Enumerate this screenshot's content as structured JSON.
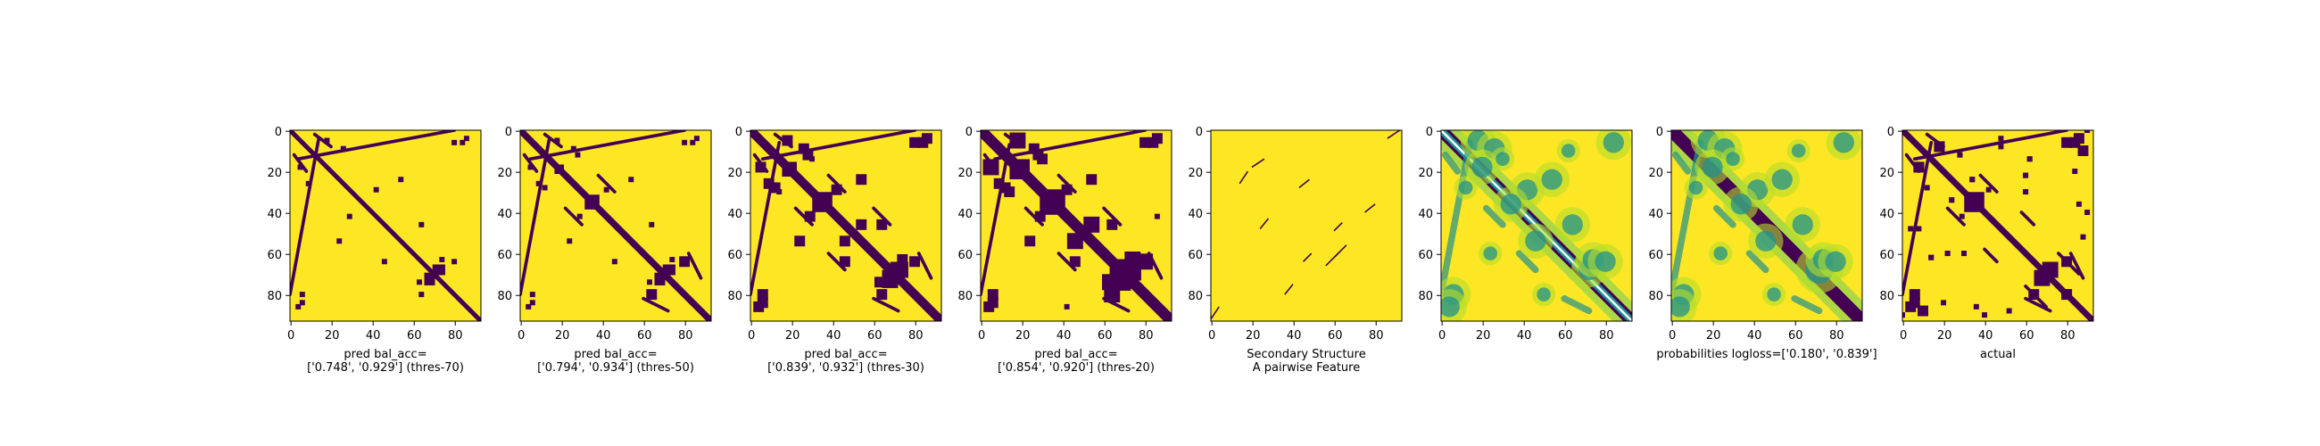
{
  "colors": {
    "background": "#fde725",
    "contact": "#440154",
    "mid_teal": "#21918c",
    "mid_green": "#5ec962",
    "light_green": "#b5de2b",
    "axes": "#000000"
  },
  "chart_data": [
    {
      "type": "heatmap",
      "colormap": "viridis",
      "grid": false,
      "matrix_size": 93,
      "xlim": [
        0,
        93
      ],
      "ylim": [
        93,
        0
      ],
      "xticks": [
        "0",
        "20",
        "40",
        "60",
        "80"
      ],
      "yticks": [
        "0",
        "20",
        "40",
        "60",
        "80"
      ],
      "xlabel": [
        "pred bal_acc=",
        "['0.748', '0.929'] (thres-70)"
      ],
      "diag_width": 1.1,
      "blobs": [
        [
          18,
          5,
          1
        ],
        [
          26,
          9,
          1
        ],
        [
          42,
          29,
          1
        ],
        [
          54,
          24,
          1
        ],
        [
          64,
          46,
          1
        ],
        [
          72,
          68,
          2
        ],
        [
          68,
          73,
          2
        ],
        [
          74,
          63,
          1
        ],
        [
          80,
          64,
          1
        ],
        [
          84,
          6,
          1
        ],
        [
          6,
          80,
          1
        ],
        [
          4,
          86,
          1
        ]
      ],
      "offdiag": [
        [
          0,
          80,
          14,
          4
        ],
        [
          2,
          12,
          8,
          20
        ]
      ]
    },
    {
      "type": "heatmap",
      "colormap": "viridis",
      "grid": false,
      "matrix_size": 93,
      "xlim": [
        0,
        93
      ],
      "ylim": [
        93,
        0
      ],
      "xticks": [
        "0",
        "20",
        "40",
        "60",
        "80"
      ],
      "yticks": [
        "0",
        "20",
        "40",
        "60",
        "80"
      ],
      "xlabel": [
        "pred bal_acc=",
        "['0.794', '0.934'] (thres-50)"
      ],
      "diag_width": 1.6,
      "blobs": [
        [
          18,
          5,
          1
        ],
        [
          26,
          9,
          1
        ],
        [
          20,
          18,
          1
        ],
        [
          42,
          29,
          1
        ],
        [
          34,
          36,
          2
        ],
        [
          54,
          24,
          1
        ],
        [
          64,
          46,
          1
        ],
        [
          72,
          68,
          2
        ],
        [
          68,
          73,
          2
        ],
        [
          74,
          63,
          1
        ],
        [
          80,
          64,
          2
        ],
        [
          84,
          6,
          1
        ],
        [
          6,
          80,
          1
        ],
        [
          4,
          86,
          1
        ],
        [
          12,
          28,
          1
        ]
      ],
      "offdiag": [
        [
          0,
          80,
          14,
          5
        ],
        [
          2,
          12,
          8,
          20
        ],
        [
          60,
          82,
          72,
          88
        ],
        [
          22,
          38,
          30,
          46
        ]
      ]
    },
    {
      "type": "heatmap",
      "colormap": "viridis",
      "grid": false,
      "matrix_size": 93,
      "xlim": [
        0,
        93
      ],
      "ylim": [
        93,
        0
      ],
      "xticks": [
        "0",
        "20",
        "40",
        "60",
        "80"
      ],
      "yticks": [
        "0",
        "20",
        "40",
        "60",
        "80"
      ],
      "xlabel": [
        "pred bal_acc=",
        "['0.839', '0.932'] (thres-30)"
      ],
      "diag_width": 2.2,
      "blobs": [
        [
          18,
          5,
          2
        ],
        [
          26,
          9,
          2
        ],
        [
          20,
          18,
          2
        ],
        [
          42,
          29,
          2
        ],
        [
          34,
          36,
          3
        ],
        [
          54,
          24,
          2
        ],
        [
          64,
          46,
          2
        ],
        [
          72,
          68,
          3
        ],
        [
          68,
          73,
          3
        ],
        [
          74,
          63,
          2
        ],
        [
          80,
          64,
          2
        ],
        [
          84,
          6,
          2
        ],
        [
          6,
          80,
          2
        ],
        [
          4,
          86,
          2
        ],
        [
          12,
          28,
          2
        ],
        [
          46,
          54,
          2
        ],
        [
          30,
          14,
          1
        ]
      ],
      "offdiag": [
        [
          0,
          80,
          14,
          6
        ],
        [
          2,
          12,
          8,
          20
        ],
        [
          60,
          82,
          72,
          88
        ],
        [
          22,
          38,
          30,
          46
        ],
        [
          38,
          60,
          46,
          68
        ]
      ]
    },
    {
      "type": "heatmap",
      "colormap": "viridis",
      "grid": false,
      "matrix_size": 93,
      "xlim": [
        0,
        93
      ],
      "ylim": [
        93,
        0
      ],
      "xticks": [
        "0",
        "20",
        "40",
        "60",
        "80"
      ],
      "yticks": [
        "0",
        "20",
        "40",
        "60",
        "80"
      ],
      "xlabel": [
        "pred bal_acc=",
        "['0.854', '0.920'] (thres-20)"
      ],
      "diag_width": 2.7,
      "blobs": [
        [
          18,
          5,
          3
        ],
        [
          26,
          9,
          2
        ],
        [
          20,
          18,
          3
        ],
        [
          42,
          29,
          2
        ],
        [
          34,
          36,
          4
        ],
        [
          54,
          24,
          2
        ],
        [
          64,
          46,
          2
        ],
        [
          72,
          68,
          4
        ],
        [
          68,
          73,
          4
        ],
        [
          74,
          63,
          3
        ],
        [
          80,
          64,
          3
        ],
        [
          84,
          6,
          2
        ],
        [
          6,
          80,
          2
        ],
        [
          4,
          86,
          2
        ],
        [
          12,
          28,
          2
        ],
        [
          46,
          54,
          3
        ],
        [
          30,
          14,
          2
        ],
        [
          86,
          42,
          1
        ]
      ],
      "offdiag": [
        [
          0,
          80,
          14,
          7
        ],
        [
          2,
          12,
          8,
          20
        ],
        [
          60,
          82,
          72,
          88
        ],
        [
          22,
          38,
          30,
          46
        ],
        [
          38,
          60,
          46,
          68
        ]
      ]
    },
    {
      "type": "heatmap",
      "colormap": "viridis",
      "grid": false,
      "matrix_size": 93,
      "xlim": [
        0,
        93
      ],
      "ylim": [
        93,
        0
      ],
      "xticks": [
        "0",
        "20",
        "40",
        "60",
        "80"
      ],
      "yticks": [
        "0",
        "20",
        "40",
        "60",
        "80"
      ],
      "xlabel": [
        "Secondary Structure",
        "A pairwise Feature"
      ],
      "diag_width": 0,
      "lines": [
        [
          26,
          14,
          20,
          18
        ],
        [
          14,
          26,
          18,
          20
        ],
        [
          43,
          28,
          48,
          24
        ],
        [
          28,
          43,
          24,
          48
        ],
        [
          64,
          45,
          60,
          49
        ],
        [
          45,
          64,
          49,
          60
        ],
        [
          75,
          40,
          80,
          36
        ],
        [
          40,
          75,
          36,
          80
        ],
        [
          4,
          86,
          0,
          92
        ],
        [
          86,
          4,
          92,
          0
        ],
        [
          56,
          66,
          62,
          60
        ],
        [
          66,
          56,
          60,
          62
        ]
      ]
    },
    {
      "type": "heatmap",
      "colormap": "viridis",
      "grid": false,
      "matrix_size": 93,
      "xlim": [
        0,
        93
      ],
      "ylim": [
        93,
        0
      ],
      "xticks": [
        "0",
        "20",
        "40",
        "60",
        "80"
      ],
      "yticks": [
        "0",
        "20",
        "40",
        "60",
        "80"
      ],
      "xlabel": [
        ""
      ],
      "diag_width": 3.0,
      "diag_center": "light",
      "blobs": [
        [
          18,
          5,
          3
        ],
        [
          26,
          9,
          3
        ],
        [
          20,
          18,
          3
        ],
        [
          42,
          29,
          3
        ],
        [
          34,
          36,
          3
        ],
        [
          54,
          24,
          3
        ],
        [
          64,
          46,
          3
        ],
        [
          72,
          68,
          3
        ],
        [
          74,
          63,
          3
        ],
        [
          80,
          64,
          3
        ],
        [
          84,
          6,
          3
        ],
        [
          6,
          80,
          3
        ],
        [
          4,
          86,
          3
        ],
        [
          12,
          28,
          2
        ],
        [
          46,
          54,
          3
        ],
        [
          30,
          14,
          2
        ],
        [
          50,
          80,
          2
        ],
        [
          24,
          60,
          2
        ],
        [
          62,
          10,
          2
        ]
      ],
      "offdiag": [
        [
          0,
          80,
          14,
          6
        ],
        [
          2,
          12,
          8,
          20
        ],
        [
          60,
          82,
          72,
          88
        ],
        [
          22,
          38,
          30,
          46
        ],
        [
          38,
          60,
          46,
          68
        ]
      ],
      "blob_style": "soft"
    },
    {
      "type": "heatmap",
      "colormap": "viridis",
      "grid": false,
      "matrix_size": 93,
      "xlim": [
        0,
        93
      ],
      "ylim": [
        93,
        0
      ],
      "xticks": [
        "0",
        "20",
        "40",
        "60",
        "80"
      ],
      "yticks": [
        "0",
        "20",
        "40",
        "60",
        "80"
      ],
      "xlabel": [
        "probabilities logloss=['0.180', '0.839']"
      ],
      "diag_width": 3.2,
      "blobs": [
        [
          18,
          5,
          3
        ],
        [
          26,
          9,
          3
        ],
        [
          20,
          18,
          3
        ],
        [
          42,
          29,
          3
        ],
        [
          34,
          36,
          3
        ],
        [
          54,
          24,
          3
        ],
        [
          64,
          46,
          3
        ],
        [
          72,
          68,
          4
        ],
        [
          74,
          63,
          3
        ],
        [
          80,
          64,
          3
        ],
        [
          84,
          6,
          3
        ],
        [
          6,
          80,
          3
        ],
        [
          4,
          86,
          3
        ],
        [
          12,
          28,
          2
        ],
        [
          46,
          54,
          3
        ],
        [
          30,
          14,
          2
        ],
        [
          50,
          80,
          2
        ],
        [
          24,
          60,
          2
        ],
        [
          62,
          10,
          2
        ]
      ],
      "offdiag": [
        [
          0,
          80,
          14,
          6
        ],
        [
          2,
          12,
          8,
          20
        ],
        [
          60,
          82,
          72,
          88
        ],
        [
          22,
          38,
          30,
          46
        ],
        [
          38,
          60,
          46,
          68
        ]
      ],
      "blob_style": "soft"
    },
    {
      "type": "heatmap",
      "colormap": "viridis",
      "grid": false,
      "matrix_size": 93,
      "xlim": [
        0,
        93
      ],
      "ylim": [
        93,
        0
      ],
      "xticks": [
        "0",
        "20",
        "40",
        "60",
        "80"
      ],
      "yticks": [
        "0",
        "20",
        "40",
        "60",
        "80"
      ],
      "xlabel": [
        "actual"
      ],
      "diag_width": 1.5,
      "blobs": [
        [
          8,
          18,
          2
        ],
        [
          18,
          8,
          2
        ],
        [
          12,
          28,
          1
        ],
        [
          28,
          12,
          1
        ],
        [
          34,
          36,
          3
        ],
        [
          42,
          29,
          1
        ],
        [
          30,
          60,
          1
        ],
        [
          60,
          30,
          1
        ],
        [
          72,
          68,
          3
        ],
        [
          68,
          73,
          2
        ],
        [
          80,
          64,
          2
        ],
        [
          84,
          6,
          2
        ],
        [
          6,
          80,
          2
        ],
        [
          4,
          86,
          1
        ],
        [
          88,
          10,
          2
        ],
        [
          86,
          4,
          2
        ],
        [
          90,
          0,
          1
        ],
        [
          0,
          90,
          1
        ],
        [
          40,
          90,
          1
        ],
        [
          88,
          52,
          1
        ],
        [
          86,
          36,
          1
        ],
        [
          22,
          60,
          1
        ],
        [
          60,
          22,
          1
        ],
        [
          14,
          62,
          1
        ],
        [
          62,
          14,
          1
        ],
        [
          48,
          8,
          1
        ],
        [
          4,
          48,
          1
        ],
        [
          80,
          80,
          2
        ],
        [
          24,
          34,
          1
        ],
        [
          34,
          24,
          1
        ],
        [
          84,
          20,
          1
        ]
      ],
      "offdiag": [
        [
          0,
          80,
          14,
          6
        ],
        [
          2,
          12,
          8,
          20
        ],
        [
          60,
          82,
          72,
          88
        ],
        [
          22,
          38,
          30,
          46
        ],
        [
          40,
          58,
          46,
          64
        ],
        [
          76,
          60,
          86,
          70
        ]
      ]
    }
  ]
}
